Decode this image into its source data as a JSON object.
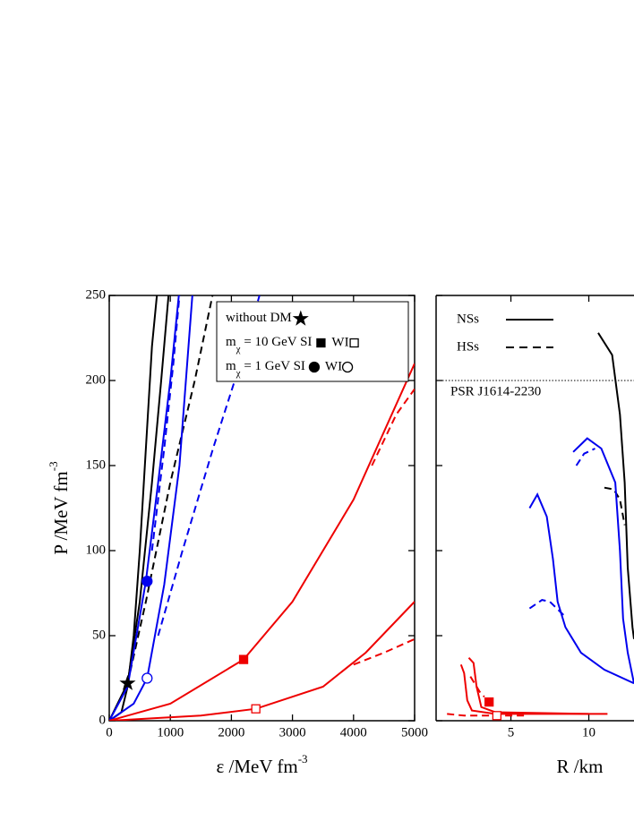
{
  "chart_data": [
    {
      "type": "line",
      "x_label": {
        "text": "ε /MeV fm",
        "sup": "-3"
      },
      "y_label": {
        "text": "P /MeV fm",
        "sup": "-3"
      },
      "xlim": [
        0,
        5000
      ],
      "ylim": [
        0,
        250
      ],
      "xticks": [
        0,
        1000,
        2000,
        3000,
        4000,
        5000
      ],
      "yticks": [
        0,
        50,
        100,
        150,
        200,
        250
      ],
      "legend": {
        "corner": "upper right",
        "rows": [
          {
            "parts": [
              "without DM"
            ],
            "shape": "star"
          },
          {
            "parts": [
              "m",
              "χ",
              " = 10 GeV SI"
            ],
            "second": "WI",
            "shape": "square"
          },
          {
            "parts": [
              "m",
              "χ",
              " =   1 GeV SI"
            ],
            "second": "WI",
            "shape": "circle"
          }
        ]
      },
      "series": [
        {
          "color": "#000000",
          "dash": false,
          "x": [
            0,
            200,
            300,
            400,
            500,
            600,
            700,
            780
          ],
          "values": [
            0,
            5,
            20,
            50,
            100,
            160,
            220,
            250
          ]
        },
        {
          "color": "#000000",
          "dash": false,
          "x": [
            0,
            300,
            500,
            700,
            850,
            970
          ],
          "values": [
            0,
            22,
            70,
            140,
            200,
            250
          ]
        },
        {
          "color": "#000000",
          "dash": true,
          "x": [
            300,
            600,
            1000,
            1400,
            1690
          ],
          "values": [
            22,
            70,
            140,
            200,
            250
          ]
        },
        {
          "color": "#0000ee",
          "dash": false,
          "x": [
            0,
            300,
            600,
            800,
            1000,
            1140
          ],
          "values": [
            0,
            20,
            82,
            140,
            200,
            250
          ]
        },
        {
          "color": "#0000ee",
          "dash": false,
          "x": [
            0,
            400,
            620,
            900,
            1150,
            1360
          ],
          "values": [
            0,
            10,
            25,
            80,
            150,
            250
          ]
        },
        {
          "color": "#0000ee",
          "dash": true,
          "x": [
            800,
            1200,
            1700,
            2100,
            2460
          ],
          "values": [
            50,
            100,
            160,
            205,
            250
          ]
        },
        {
          "color": "#0000ee",
          "dash": true,
          "x": [
            700,
            900,
            1050,
            1150
          ],
          "values": [
            100,
            160,
            210,
            250
          ]
        },
        {
          "color": "#ee0000",
          "dash": false,
          "x": [
            0,
            1000,
            2200,
            3000,
            4000,
            5000
          ],
          "values": [
            0,
            10,
            36,
            70,
            130,
            210
          ]
        },
        {
          "color": "#ee0000",
          "dash": true,
          "x": [
            4300,
            4700,
            5000
          ],
          "values": [
            150,
            180,
            195
          ]
        },
        {
          "color": "#ee0000",
          "dash": false,
          "x": [
            0,
            1500,
            2400,
            3500,
            4200,
            5000
          ],
          "values": [
            0,
            3,
            7,
            20,
            40,
            70
          ]
        },
        {
          "color": "#ee0000",
          "dash": true,
          "x": [
            4000,
            4500,
            5000
          ],
          "values": [
            33,
            40,
            48
          ]
        }
      ],
      "markers": [
        {
          "shape": "star",
          "filled": true,
          "color": "#000000",
          "x": 300,
          "y": 22
        },
        {
          "shape": "circle",
          "filled": true,
          "color": "#0000ee",
          "x": 620,
          "y": 82
        },
        {
          "shape": "circle",
          "filled": false,
          "color": "#0000ee",
          "x": 620,
          "y": 25
        },
        {
          "shape": "square",
          "filled": true,
          "color": "#ee0000",
          "x": 2200,
          "y": 36
        },
        {
          "shape": "square",
          "filled": false,
          "color": "#ee0000",
          "x": 2400,
          "y": 7
        }
      ]
    },
    {
      "type": "line",
      "x_label": {
        "text": "R /km"
      },
      "xlim": [
        0.2,
        12.9
      ],
      "ylim": [
        0,
        250
      ],
      "xticks": [
        5,
        10
      ],
      "yticks": [
        0,
        50,
        100,
        150,
        200,
        250
      ],
      "legend": {
        "corner": "upper left",
        "rows": [
          {
            "label": "NSs",
            "dash": false
          },
          {
            "label": "HSs",
            "dash": true
          }
        ]
      },
      "reference": {
        "y": 200,
        "label": "PSR J1614-2230"
      },
      "series": [
        {
          "color": "#000000",
          "dash": false,
          "x": [
            10.6,
            11.5,
            12,
            12.3,
            12.5,
            12.8,
            12.9
          ],
          "values": [
            228,
            215,
            180,
            140,
            90,
            55,
            48
          ]
        },
        {
          "color": "#000000",
          "dash": true,
          "x": [
            11,
            11.6,
            12,
            12.3
          ],
          "values": [
            137,
            136,
            130,
            115
          ]
        },
        {
          "color": "#0000ee",
          "dash": false,
          "x": [
            9,
            9.9,
            10.8,
            11.7,
            12,
            12.2,
            12.5,
            12.9
          ],
          "values": [
            158,
            166,
            160,
            140,
            100,
            60,
            40,
            22
          ]
        },
        {
          "color": "#0000ee",
          "dash": true,
          "x": [
            9.2,
            9.7,
            10.4
          ],
          "values": [
            150,
            157,
            160
          ]
        },
        {
          "color": "#0000ee",
          "dash": false,
          "x": [
            6.2,
            6.7,
            7.3,
            7.7,
            8,
            8.5,
            9.5,
            11,
            12.9
          ],
          "values": [
            125,
            133,
            120,
            95,
            70,
            55,
            40,
            30,
            22
          ]
        },
        {
          "color": "#0000ee",
          "dash": true,
          "x": [
            6.2,
            7,
            7.5,
            8.4
          ],
          "values": [
            66,
            71,
            70,
            62
          ]
        },
        {
          "color": "#ee0000",
          "dash": false,
          "x": [
            1.8,
            2,
            2.2,
            2.5,
            4,
            8,
            11.2
          ],
          "values": [
            33,
            28,
            12,
            6,
            4,
            4,
            4
          ]
        },
        {
          "color": "#ee0000",
          "dash": false,
          "x": [
            2.3,
            2.6,
            2.8,
            3.1,
            4,
            10
          ],
          "values": [
            37,
            34,
            20,
            8,
            5,
            4
          ]
        },
        {
          "color": "#ee0000",
          "dash": true,
          "x": [
            0.9,
            2,
            3,
            4,
            6
          ],
          "values": [
            4,
            3,
            3,
            3,
            3
          ]
        },
        {
          "color": "#ee0000",
          "dash": true,
          "x": [
            2.4,
            3,
            3.3
          ],
          "values": [
            26,
            17,
            14
          ]
        }
      ],
      "markers": [
        {
          "shape": "square",
          "filled": true,
          "color": "#ee0000",
          "x": 3.6,
          "y": 11
        },
        {
          "shape": "square",
          "filled": false,
          "color": "#ee0000",
          "x": 4.1,
          "y": 3
        }
      ]
    }
  ]
}
